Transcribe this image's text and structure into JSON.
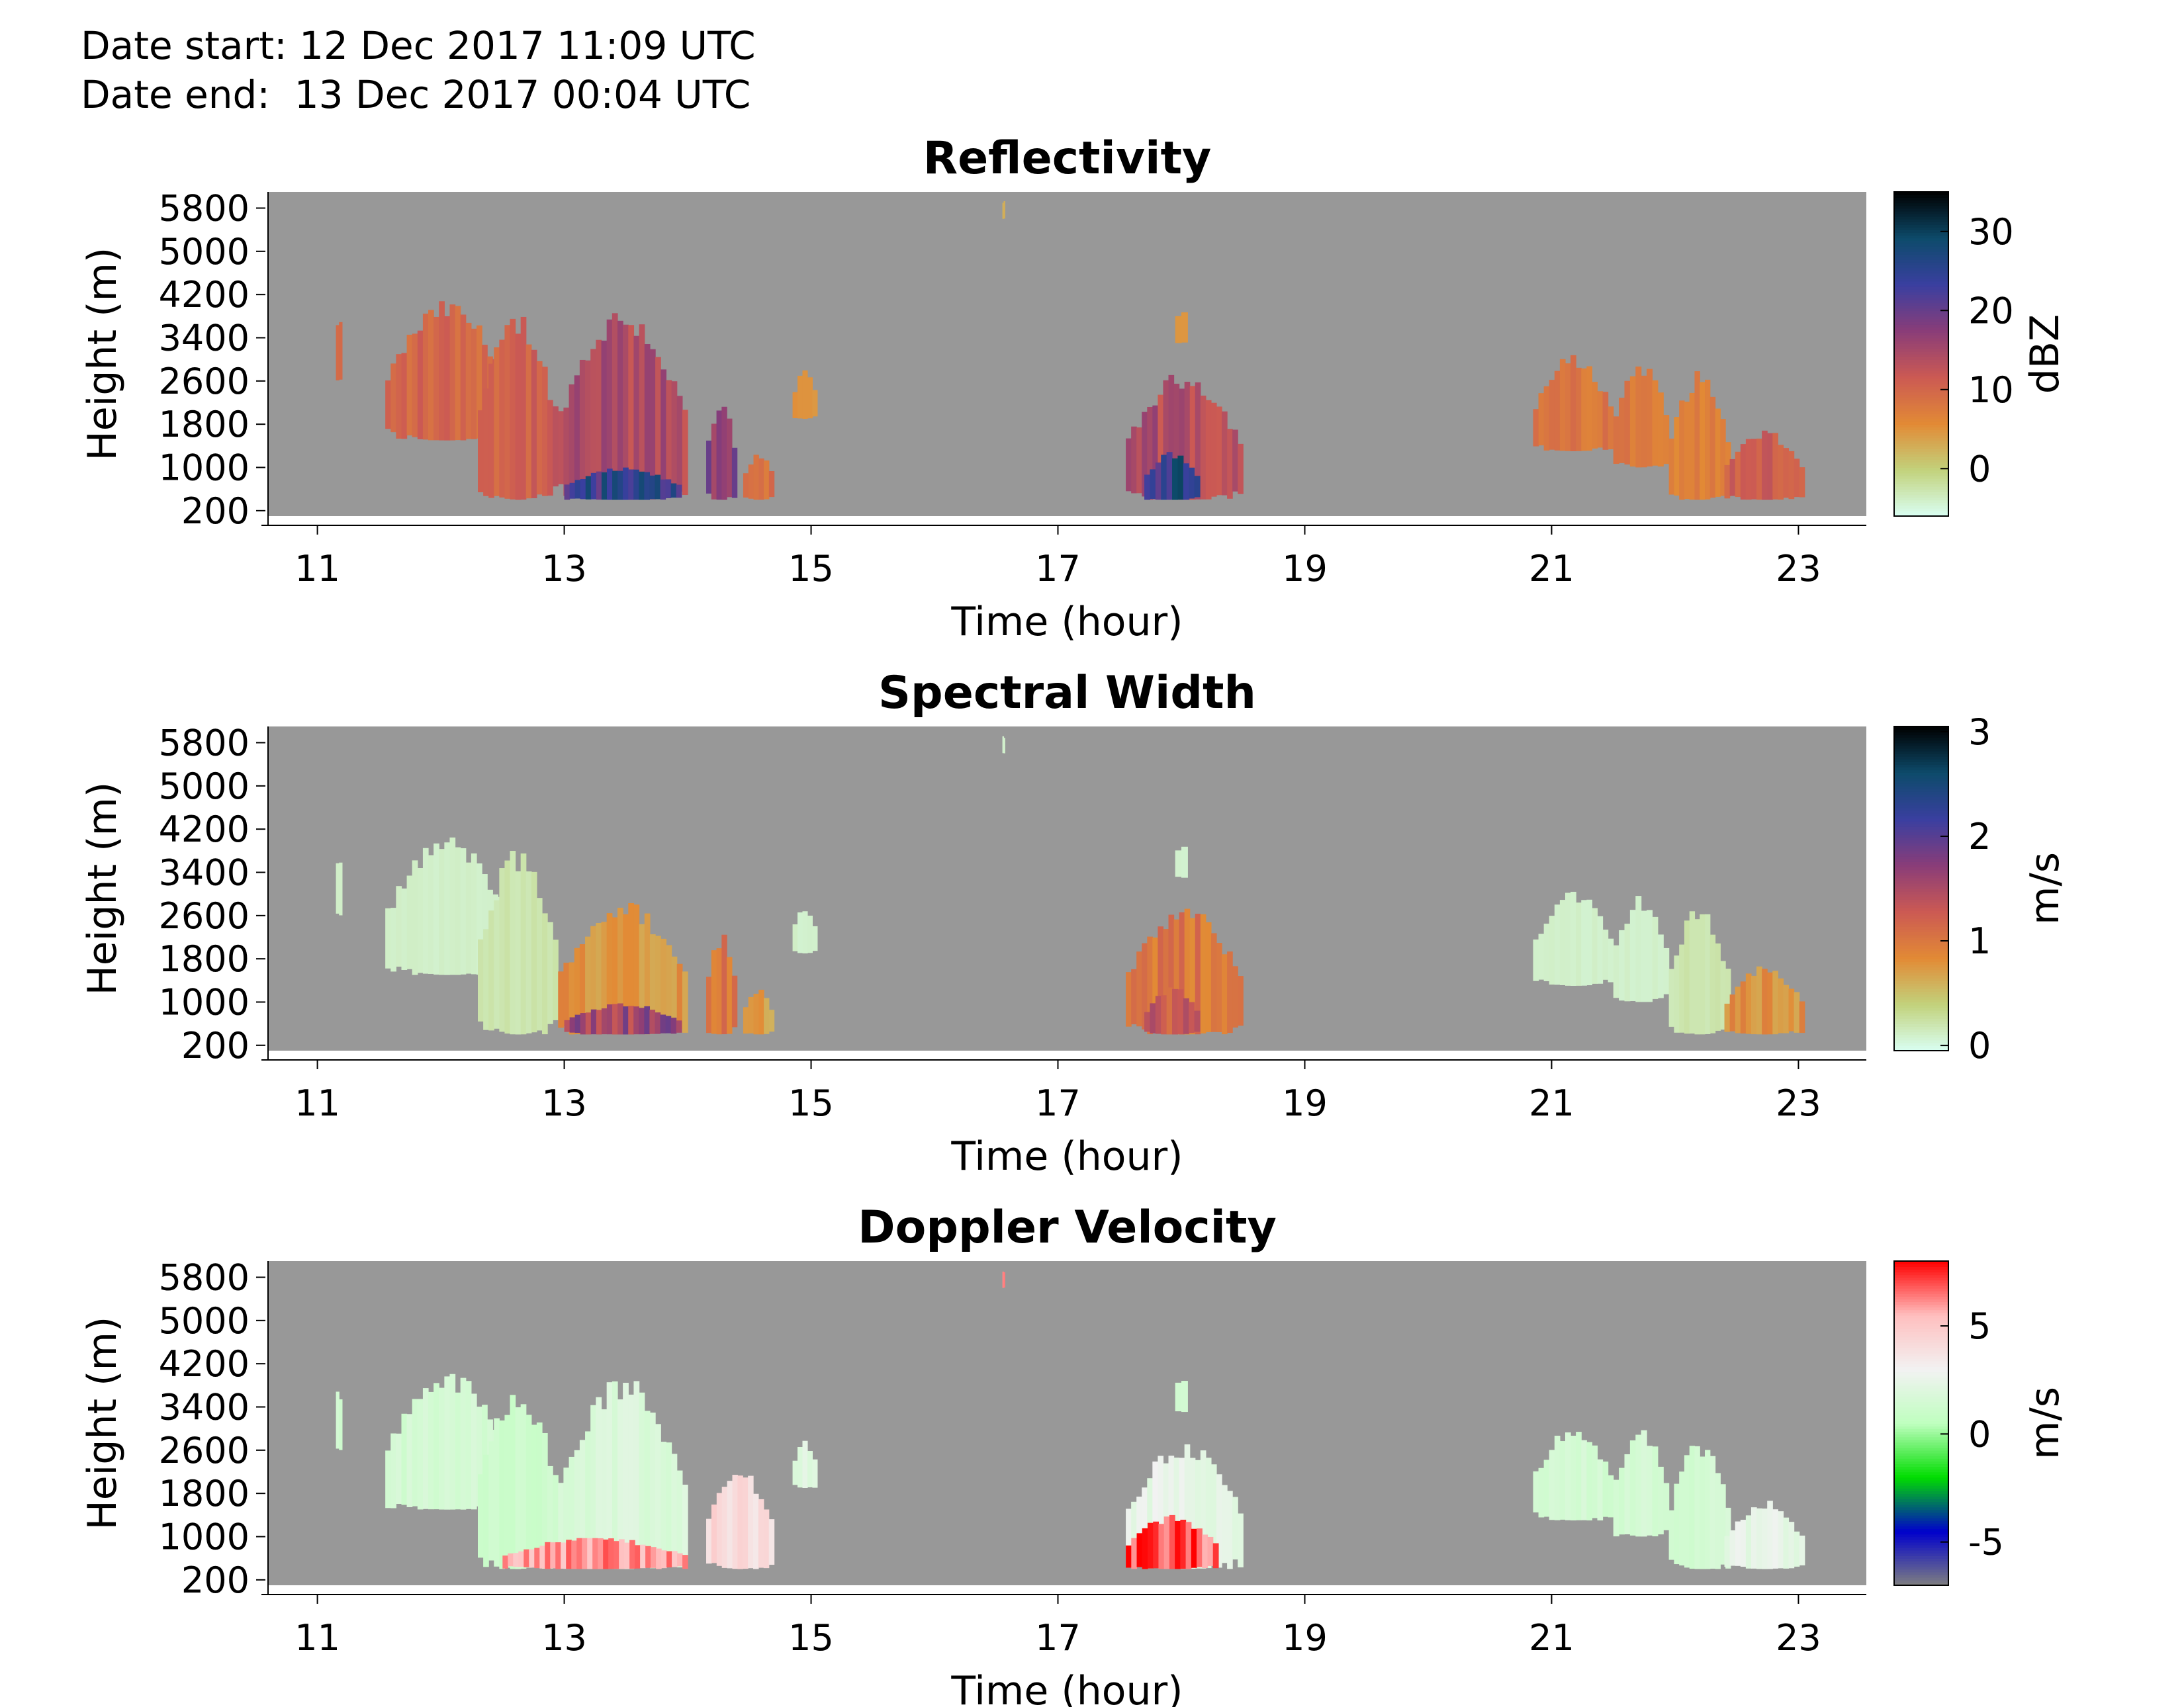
{
  "header": {
    "start_label": "Date start:",
    "start_value": "12 Dec 2017 11:09 UTC",
    "end_label": "Date end:",
    "end_value": "13 Dec 2017 00:04 UTC"
  },
  "colors": {
    "background": "#989898",
    "reflectivity_scale": [
      "#d9fff3",
      "#c2d27c",
      "#e28a35",
      "#cc5a53",
      "#8a3d78",
      "#3a3fa0",
      "#0d4b6b",
      "#000000"
    ],
    "spectral_width_scale": [
      "#d9fff3",
      "#c2d27c",
      "#e28a35",
      "#cc5a53",
      "#8a3d78",
      "#3a3fa0",
      "#0d4b6b",
      "#000000"
    ],
    "doppler_scale": [
      "#808080",
      "#0000cc",
      "#00dd00",
      "#bfffbf",
      "#f2f2f2",
      "#ffbfbf",
      "#ff0000"
    ]
  },
  "chart_data": [
    {
      "type": "heatmap",
      "title": "Reflectivity",
      "xlabel": "Time (hour)",
      "ylabel": "Height (m)",
      "xlim": [
        10.6,
        23.55
      ],
      "ylim": [
        100,
        6100
      ],
      "x_ticks": [
        11,
        13,
        15,
        17,
        19,
        21,
        23
      ],
      "y_ticks": [
        200,
        1000,
        1800,
        2600,
        3400,
        4200,
        5000,
        5800
      ],
      "colorbar": {
        "label": "dBZ",
        "ticks": [
          0,
          10,
          20,
          30
        ],
        "range": [
          -6,
          35
        ]
      },
      "echo_regions": [
        {
          "x": [
            11.15,
            11.2
          ],
          "y": [
            2600,
            3900
          ],
          "value": 9
        },
        {
          "x": [
            11.55,
            12.55
          ],
          "y": [
            1500,
            4100
          ],
          "value": 10
        },
        {
          "x": [
            12.3,
            12.95
          ],
          "y": [
            400,
            3900
          ],
          "value": 11
        },
        {
          "x": [
            12.95,
            14.0
          ],
          "y": [
            400,
            4000
          ],
          "value": 14
        },
        {
          "x": [
            13.0,
            13.95
          ],
          "y": [
            400,
            1000
          ],
          "value": 24
        },
        {
          "x": [
            14.15,
            14.4
          ],
          "y": [
            400,
            2300
          ],
          "value": 18
        },
        {
          "x": [
            14.45,
            14.7
          ],
          "y": [
            400,
            1300
          ],
          "value": 9
        },
        {
          "x": [
            14.85,
            15.05
          ],
          "y": [
            1900,
            2800
          ],
          "value": 5
        },
        {
          "x": [
            16.55,
            16.57
          ],
          "y": [
            5600,
            6000
          ],
          "value": 3
        },
        {
          "x": [
            17.95,
            18.05
          ],
          "y": [
            3300,
            4000
          ],
          "value": 4
        },
        {
          "x": [
            17.55,
            18.5
          ],
          "y": [
            400,
            2800
          ],
          "value": 14
        },
        {
          "x": [
            17.7,
            18.15
          ],
          "y": [
            400,
            1300
          ],
          "value": 25
        },
        {
          "x": [
            20.85,
            21.5
          ],
          "y": [
            1300,
            3100
          ],
          "value": 8
        },
        {
          "x": [
            21.5,
            21.95
          ],
          "y": [
            1000,
            3000
          ],
          "value": 8
        },
        {
          "x": [
            21.95,
            22.45
          ],
          "y": [
            400,
            2800
          ],
          "value": 7
        },
        {
          "x": [
            22.4,
            23.05
          ],
          "y": [
            400,
            1700
          ],
          "value": 11
        }
      ]
    },
    {
      "type": "heatmap",
      "title": "Spectral Width",
      "xlabel": "Time (hour)",
      "ylabel": "Height (m)",
      "xlim": [
        10.6,
        23.55
      ],
      "ylim": [
        100,
        6100
      ],
      "x_ticks": [
        11,
        13,
        15,
        17,
        19,
        21,
        23
      ],
      "y_ticks": [
        200,
        1000,
        1800,
        2600,
        3400,
        4200,
        5000,
        5800
      ],
      "colorbar": {
        "label": "m/s",
        "ticks": [
          0,
          1,
          2,
          3
        ],
        "range": [
          -0.05,
          3.05
        ]
      },
      "echo_regions": [
        {
          "x": [
            11.15,
            11.2
          ],
          "y": [
            2600,
            3900
          ],
          "value": 0.1
        },
        {
          "x": [
            11.55,
            12.55
          ],
          "y": [
            1500,
            4100
          ],
          "value": 0.1
        },
        {
          "x": [
            12.3,
            12.95
          ],
          "y": [
            400,
            3900
          ],
          "value": 0.2
        },
        {
          "x": [
            12.95,
            14.0
          ],
          "y": [
            400,
            2900
          ],
          "value": 0.8
        },
        {
          "x": [
            13.0,
            13.95
          ],
          "y": [
            400,
            1000
          ],
          "value": 1.6
        },
        {
          "x": [
            14.15,
            14.4
          ],
          "y": [
            400,
            2300
          ],
          "value": 1.0
        },
        {
          "x": [
            14.45,
            14.7
          ],
          "y": [
            400,
            1300
          ],
          "value": 0.7
        },
        {
          "x": [
            14.85,
            15.05
          ],
          "y": [
            1900,
            2800
          ],
          "value": 0.1
        },
        {
          "x": [
            16.55,
            16.57
          ],
          "y": [
            5600,
            6000
          ],
          "value": 0.1
        },
        {
          "x": [
            17.95,
            18.05
          ],
          "y": [
            3300,
            4000
          ],
          "value": 0.1
        },
        {
          "x": [
            17.55,
            18.5
          ],
          "y": [
            400,
            2800
          ],
          "value": 1.0
        },
        {
          "x": [
            17.7,
            18.15
          ],
          "y": [
            400,
            1300
          ],
          "value": 1.3
        },
        {
          "x": [
            20.85,
            21.5
          ],
          "y": [
            1300,
            3100
          ],
          "value": 0.1
        },
        {
          "x": [
            21.5,
            21.95
          ],
          "y": [
            1000,
            3000
          ],
          "value": 0.1
        },
        {
          "x": [
            21.95,
            22.45
          ],
          "y": [
            400,
            2800
          ],
          "value": 0.2
        },
        {
          "x": [
            22.4,
            23.05
          ],
          "y": [
            400,
            1700
          ],
          "value": 0.8
        }
      ]
    },
    {
      "type": "heatmap",
      "title": "Doppler Velocity",
      "xlabel": "Time (hour)",
      "ylabel": "Height (m)",
      "xlim": [
        10.6,
        23.55
      ],
      "ylim": [
        100,
        6100
      ],
      "x_ticks": [
        11,
        13,
        15,
        17,
        19,
        21,
        23
      ],
      "y_ticks": [
        200,
        1000,
        1800,
        2600,
        3400,
        4200,
        5000,
        5800
      ],
      "colorbar": {
        "label": "m/s",
        "ticks": [
          5,
          0,
          -5
        ],
        "range": [
          -7,
          8
        ]
      },
      "echo_regions": [
        {
          "x": [
            11.15,
            11.2
          ],
          "y": [
            2600,
            3900
          ],
          "value": 1.5
        },
        {
          "x": [
            11.55,
            12.55
          ],
          "y": [
            1500,
            4100
          ],
          "value": 1.5
        },
        {
          "x": [
            12.3,
            12.95
          ],
          "y": [
            400,
            3900
          ],
          "value": 1.2
        },
        {
          "x": [
            12.95,
            14.0
          ],
          "y": [
            400,
            4000
          ],
          "value": 1.8
        },
        {
          "x": [
            12.5,
            14.0
          ],
          "y": [
            400,
            1000
          ],
          "value": 6
        },
        {
          "x": [
            14.15,
            14.7
          ],
          "y": [
            400,
            2300
          ],
          "value": 4
        },
        {
          "x": [
            14.85,
            15.05
          ],
          "y": [
            1900,
            2800
          ],
          "value": 2
        },
        {
          "x": [
            16.55,
            16.57
          ],
          "y": [
            5600,
            6000
          ],
          "value": 7
        },
        {
          "x": [
            17.95,
            18.05
          ],
          "y": [
            3300,
            4000
          ],
          "value": 1.5
        },
        {
          "x": [
            17.55,
            18.5
          ],
          "y": [
            400,
            2800
          ],
          "value": 2.5
        },
        {
          "x": [
            17.55,
            18.3
          ],
          "y": [
            400,
            1400
          ],
          "value": 7
        },
        {
          "x": [
            20.85,
            21.5
          ],
          "y": [
            1300,
            3100
          ],
          "value": 1.5
        },
        {
          "x": [
            21.5,
            21.95
          ],
          "y": [
            1000,
            3000
          ],
          "value": 1.5
        },
        {
          "x": [
            21.95,
            22.45
          ],
          "y": [
            400,
            2800
          ],
          "value": 1.5
        },
        {
          "x": [
            22.4,
            23.05
          ],
          "y": [
            400,
            1700
          ],
          "value": 2.5
        }
      ]
    }
  ]
}
